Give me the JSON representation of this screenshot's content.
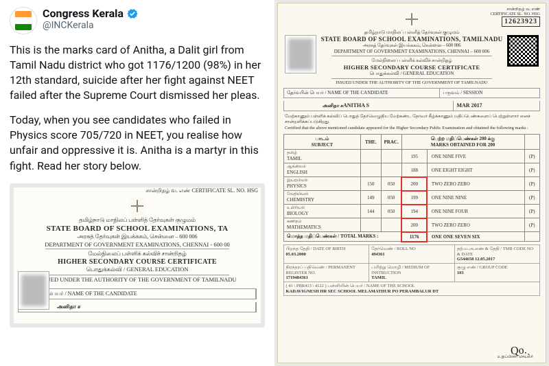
{
  "tweet": {
    "display_name": "Congress Kerala",
    "handle": "@INCKerala",
    "para1": "This is the marks card of Anitha, a Dalit girl from Tamil Nadu district who got 1176/1200 (98%) in her 12th standard, suicide after her fight against NEET failed after the Supreme Court dismissed her pleas.",
    "para2": "Today, when you see candidates who failed in Physics score 705/720 in NEET, you realise how unfair and oppressive it is. Anitha is a martyr in this fight. Read her story below."
  },
  "cert": {
    "sl_label": "சான்றிதழ் வ. எண்\nCERTIFICATE SL. NO. HSG",
    "sl_no": "12623923",
    "tamil_board": "தமிழ்நாடு மாநிலப் பள்ளித் தேர்வுகள் குழுமம்",
    "board": "STATE BOARD OF SCHOOL EXAMINATIONS, TAMILNADU",
    "dept_tamil": "அரசுத் தேர்வுகள் இயக்ககம், சென்னை – 600 006",
    "dept": "DEPARTMENT OF GOVERNMENT EXAMINATIONS, CHENNAI – 600 006",
    "hsc_tamil": "மேல்நிலைப் பள்ளிக் கல்விச் சான்றிதழ்",
    "hsc": "HIGHER SECONDARY COURSE CERTIFICATE",
    "ge_tamil": "பொதுக்கல்வி / GENERAL EDUCATION",
    "issued": "ISSUED UNDER THE AUTHORITY OF THE GOVERNMENT OF TAMILNADU",
    "name_lbl": "தேர்வரின் பெயர் / NAME OF THE CANDIDATE",
    "sess_lbl": "பருவம் / SESSION",
    "name": "ANITHA S",
    "name_tamil": "அனிதா ச",
    "session": "MAR 2017",
    "attest_tamil": "மேற்காணும் பள்ளிக் கல்விப் பொதுத் தேர்வெழுதிய மேற்கண்ட தேர்வர் கீழ்க்காணும் மதிப்பெண்களைப் பெற்றுள்ளார் எனச் சான்றளிக்கப்படுகிறது.",
    "attest": "Certified that the above mentioned candidate appeared for the Higher Secondary Public Examination and obtained the following marks :",
    "col_subject": "பாடம்\nSUBJECT",
    "col_th": "THE.",
    "col_pr": "PRAC.",
    "col_marks": "பெற்ற மதிப்பெண்கள் 200 க்கு\nMARKS OBTAINED FOR 200",
    "subjects": [
      {
        "tam": "தமிழ்",
        "en": "TAMIL",
        "th": "",
        "pr": "",
        "m": "195",
        "w": "ONE NINE FIVE",
        "p": "(P)",
        "hl": false
      },
      {
        "tam": "ஆங்கிலம்",
        "en": "ENGLISH",
        "th": "",
        "pr": "",
        "m": "188",
        "w": "ONE EIGHT EIGHT",
        "p": "(P)",
        "hl": false
      },
      {
        "tam": "இயற்பியல்",
        "en": "PHYSICS",
        "th": "150",
        "pr": "050",
        "m": "200",
        "w": "TWO ZERO ZERO",
        "p": "(P)",
        "hl": true
      },
      {
        "tam": "வேதியியல்",
        "en": "CHEMISTRY",
        "th": "149",
        "pr": "050",
        "m": "199",
        "w": "ONE NINE NINE",
        "p": "(P)",
        "hl": true
      },
      {
        "tam": "உயிரியல்",
        "en": "BIOLOGY",
        "th": "144",
        "pr": "050",
        "m": "194",
        "w": "ONE NINE FOUR",
        "p": "(P)",
        "hl": true
      },
      {
        "tam": "கணிதம்",
        "en": "MATHEMATICS",
        "th": "",
        "pr": "",
        "m": "200",
        "w": "TWO ZERO ZERO",
        "p": "(P)",
        "hl": true
      }
    ],
    "total_lbl": "மொத்த மதிப்பெண்கள் / TOTAL MARKS :",
    "total": "1176",
    "total_w": "ONE ONE SEVEN SIX",
    "dob_lbl": "பிறந்த தேதி / DATE OF BIRTH",
    "dob": "05.03.2000",
    "roll_lbl": "தேர்வெண் / ROLL NO",
    "roll": "494361",
    "tmr_lbl": "தற்.ம.அ.எண் & தேதி / TMR CODE NO & DATE",
    "tmr": "G544658     12.05.2017",
    "perm_lbl": "நிரந்தரப் பதிவெண் / PERMANENT REGISTER NO.",
    "perm": "1719484361",
    "med_lbl": "பயிற்று மொழி / MEDIUM OF INSTRUCTION",
    "med": "TAMIL",
    "grp_lbl": "குழு எண் / GROUP CODE",
    "grp": "103",
    "sch_lbl": "( 41 \\ PBR413 \\ 4122 )                    பள்ளியின் பெயர் / NAME OF THE SCHOOL",
    "sch": "KADAVIGNESH HR SEC SCHOOL  MELAMATHUR PO PERAMBALUR DT",
    "sig_lbl": "உறுப்பினர் செயலர்"
  },
  "cert_trunc": {
    "board": "STATE BOARD OF SCHOOL EXAMINATIONS, TA",
    "dept": "DEPARTMENT OF GOVERNMENT EXAMINATIONS, CHENNAI - 600 00"
  }
}
